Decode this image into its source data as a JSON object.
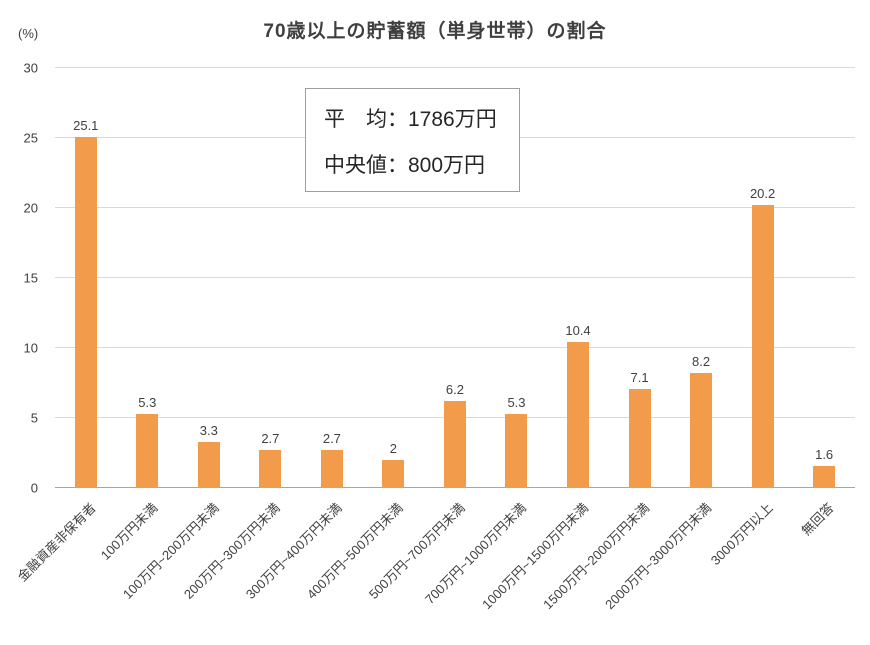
{
  "title": "70歳以上の貯蓄額（単身世帯）の割合",
  "y_axis_unit": "(%)",
  "annotation": {
    "line1": "平　均：1786万円",
    "line2": "中央値：800万円"
  },
  "colors": {
    "bar": "#F29C4B",
    "gridline": "#d9d9d9",
    "axis_line": "#a6a6a6",
    "text": "#404040"
  },
  "chart_data": {
    "type": "bar",
    "title": "70歳以上の貯蓄額（単身世帯）の割合",
    "categories": [
      "金融資産非保有者",
      "100万円未満",
      "100万円~200万円未満",
      "200万円~300万円未満",
      "300万円~400万円未満",
      "400万円~500万円未満",
      "500万円~700万円未満",
      "700万円~1000万円未満",
      "1000万円~1500万円未満",
      "1500万円~2000万円未満",
      "2000万円~3000万円未満",
      "3000万円以上",
      "無回答"
    ],
    "values": [
      25.1,
      5.3,
      3.3,
      2.7,
      2.7,
      2,
      6.2,
      5.3,
      10.4,
      7.1,
      8.2,
      20.2,
      1.6
    ],
    "value_labels": [
      "25.1",
      "5.3",
      "3.3",
      "2.7",
      "2.7",
      "2",
      "6.2",
      "5.3",
      "10.4",
      "7.1",
      "8.2",
      "20.2",
      "1.6"
    ],
    "xlabel": "",
    "ylabel": "(%)",
    "ylim": [
      0,
      30
    ],
    "ytick_interval": 5,
    "grid": true,
    "legend": "none",
    "annotations": [
      "平　均：1786万円",
      "中央値：800万円"
    ]
  }
}
